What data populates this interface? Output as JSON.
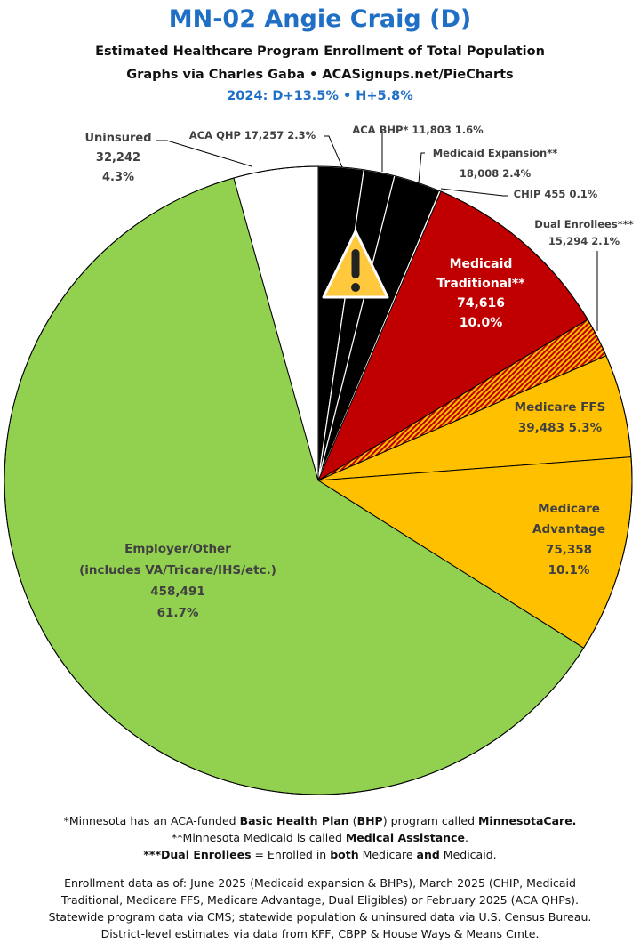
{
  "header": {
    "title": "MN-02 Angie Craig (D)",
    "subtitle": "Estimated Healthcare Program Enrollment of Total Population",
    "credit": "Graphs via Charles Gaba  •  ACASignups.net/PieCharts",
    "partisan": "2024: D+13.5%  •  H+5.8%"
  },
  "chart_data": {
    "type": "pie",
    "start_angle": "12 o'clock, clockwise",
    "slices": [
      {
        "name": "ACA QHP",
        "value": 17257,
        "percent": "2.3%",
        "color": "#000000"
      },
      {
        "name": "ACA BHP*",
        "value": 11803,
        "percent": "1.6%",
        "color": "#000000"
      },
      {
        "name": "Medicaid Expansion**",
        "value": 18008,
        "percent": "2.4%",
        "color": "#000000"
      },
      {
        "name": "CHIP",
        "value": 455,
        "percent": "0.1%",
        "color": "#000000"
      },
      {
        "name": "Medicaid Traditional**",
        "value": 74616,
        "percent": "10.0%",
        "color": "#c00000"
      },
      {
        "name": "Dual Enrollees***",
        "value": 15294,
        "percent": "2.1%",
        "color": "hatched #ffc000/#c00000"
      },
      {
        "name": "Medicare FFS",
        "value": 39483,
        "percent": "5.3%",
        "color": "#ffc000"
      },
      {
        "name": "Medicare Advantage",
        "value": 75358,
        "percent": "10.1%",
        "color": "#ffc000"
      },
      {
        "name": "Employer/Other (includes VA/Tricare/IHS/etc.)",
        "value": 458491,
        "percent": "61.7%",
        "color": "#92d050"
      },
      {
        "name": "Uninsured",
        "value": 32242,
        "percent": "4.3%",
        "color": "#ffffff"
      }
    ],
    "labels": {
      "qhp": "ACA QHP 17,257 2.3%",
      "bhp": "ACA BHP* 11,803 1.6%",
      "exp1": "Medicaid Expansion**",
      "exp2": "18,008 2.4%",
      "chip": "CHIP 455 0.1%",
      "dual1": "Dual Enrollees***",
      "dual2": "15,294 2.1%",
      "trad1": "Medicaid",
      "trad2": "Traditional**",
      "trad3": "74,616",
      "trad4": "10.0%",
      "ffs1": "Medicare FFS",
      "ffs2": "39,483 5.3%",
      "adv1": "Medicare",
      "adv2": "Advantage",
      "adv3": "75,358",
      "adv4": "10.1%",
      "emp1": "Employer/Other",
      "emp2": "(includes VA/Tricare/IHS/etc.)",
      "emp3": "458,491",
      "emp4": "61.7%",
      "un1": "Uninsured",
      "un2": "32,242",
      "un3": "4.3%"
    },
    "warning_icon": "warning-triangle"
  },
  "footnotes": {
    "f1a": "*Minnesota has an ACA-funded ",
    "f1b": "Basic Health Plan",
    "f1c": " (",
    "f1d": "BHP",
    "f1e": ") program called ",
    "f1f": "MinnesotaCare.",
    "f2a": "**Minnesota Medicaid is called ",
    "f2b": "Medical Assistance",
    "f2c": ".",
    "f3a": "***Dual Enrollees",
    "f3b": " = Enrolled in ",
    "f3c": "both",
    "f3d": " Medicare ",
    "f3e": "and",
    "f3f": " Medicaid.",
    "s1": "Enrollment data as of: June 2025 (Medicaid expansion & BHPs), March 2025 (CHIP, Medicaid",
    "s2": "Traditional, Medicare FFS, Medicare Advantage, Dual Eligibles) or February 2025 (ACA QHPs).",
    "s3": "Statewide program data via CMS; statewide population & uninsured data via U.S. Census Bureau.",
    "s4": "District-level estimates via data from KFF, CBPP & House Ways & Means Cmte."
  }
}
